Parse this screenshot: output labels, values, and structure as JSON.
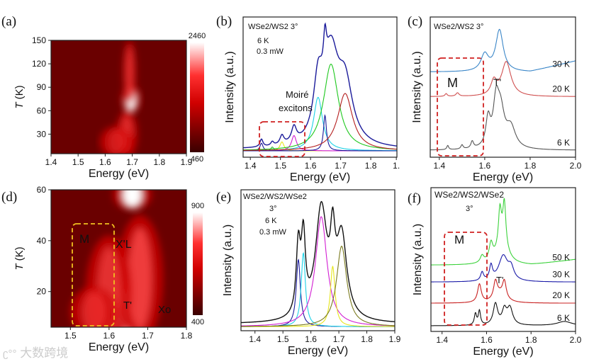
{
  "watermark": "大数跨境",
  "chart_data": [
    {
      "id": "a",
      "panel_label": "(a)",
      "type": "heatmap",
      "xlabel": "Energy (eV)",
      "ylabel": "T (K)",
      "xlim": [
        1.4,
        1.9
      ],
      "ylim": [
        5,
        150
      ],
      "xticks": [
        "1.4",
        "1.5",
        "1.6",
        "1.7",
        "1.8",
        "1.9"
      ],
      "yticks": [
        "30",
        "60",
        "90",
        "120",
        "150"
      ],
      "colorbar": {
        "max": "2460",
        "min": "460"
      },
      "hotspots": [
        {
          "energy": 1.695,
          "temperature": 75,
          "de": 0.018,
          "dt": 18,
          "intensity": 1.0
        },
        {
          "energy": 1.69,
          "temperature": 110,
          "de": 0.012,
          "dt": 40,
          "intensity": 0.6
        },
        {
          "energy": 1.68,
          "temperature": 30,
          "de": 0.02,
          "dt": 30,
          "intensity": 0.55
        },
        {
          "energy": 1.64,
          "temperature": 20,
          "de": 0.03,
          "dt": 20,
          "intensity": 0.35
        }
      ]
    },
    {
      "id": "b",
      "panel_label": "(b)",
      "type": "line",
      "xlabel": "Energy (eV)",
      "ylabel": "Intensity (a.u.)",
      "xlim": [
        1.376,
        1.887
      ],
      "ylim": [
        -0.05,
        1.05
      ],
      "xticks": [
        "1.4",
        "1.5",
        "1.6",
        "1.7",
        "1.8",
        "1."
      ],
      "annotations": [
        "WSe2/WS2 3°",
        "6   K",
        "0.3 mW",
        "Moiré",
        "excitons"
      ],
      "series": [
        {
          "name": "fit 1.437",
          "color": "#1a1a9a",
          "peaks": [
            [
              1.437,
              0.006,
              0.06
            ]
          ]
        },
        {
          "name": "fit 1.473",
          "color": "#3cb43c",
          "peaks": [
            [
              1.473,
              0.006,
              0.03
            ]
          ]
        },
        {
          "name": "fit 1.505",
          "color": "#e6e61e",
          "peaks": [
            [
              1.505,
              0.008,
              0.07
            ]
          ]
        },
        {
          "name": "fit 1.545",
          "color": "#d21ed2",
          "peaks": [
            [
              1.545,
              0.01,
              0.12
            ]
          ]
        },
        {
          "name": "fit 1.625",
          "color": "#1ed2e6",
          "peaks": [
            [
              1.625,
              0.018,
              0.42
            ]
          ]
        },
        {
          "name": "fit 1.648",
          "color": "#1a1a9a",
          "peaks": [
            [
              1.648,
              0.006,
              0.28
            ]
          ]
        },
        {
          "name": "fit 1.668",
          "color": "#1ec81e",
          "peaks": [
            [
              1.668,
              0.03,
              0.68
            ]
          ]
        },
        {
          "name": "fit 1.715",
          "color": "#b41e1e",
          "peaks": [
            [
              1.715,
              0.03,
              0.45
            ]
          ]
        },
        {
          "name": "measured",
          "color": "#1a1a9a",
          "sum": true,
          "baseline": 0.01
        }
      ]
    },
    {
      "id": "c",
      "panel_label": "(c)",
      "type": "line",
      "xlabel": "Energy (eV)",
      "ylabel": "Intensity (a.u.)",
      "xlim": [
        1.36,
        2.0
      ],
      "ylim": [
        -0.02,
        1.0
      ],
      "xticks": [
        "1.4",
        "1.6",
        "1.8",
        "2.0"
      ],
      "annotations": [
        "WSe2/WS2 3°",
        "M",
        "T'"
      ],
      "series": [
        {
          "name": "6 K",
          "color": "#555555",
          "offset": 0.03,
          "peaks": [
            [
              1.437,
              0.005,
              0.03
            ],
            [
              1.5,
              0.006,
              0.03
            ],
            [
              1.545,
              0.007,
              0.05
            ],
            [
              1.615,
              0.012,
              0.2
            ],
            [
              1.65,
              0.015,
              0.3
            ],
            [
              1.67,
              0.02,
              0.25
            ],
            [
              1.715,
              0.025,
              0.15
            ]
          ]
        },
        {
          "name": "20 K",
          "color": "#d05050",
          "offset": 0.42,
          "peaks": [
            [
              1.43,
              0.006,
              0.02
            ],
            [
              1.48,
              0.008,
              0.025
            ],
            [
              1.64,
              0.015,
              0.1
            ],
            [
              1.695,
              0.025,
              0.25
            ]
          ]
        },
        {
          "name": "30 K",
          "color": "#3a86c8",
          "offset": 0.6,
          "tilt": 0.08,
          "peaks": [
            [
              1.6,
              0.02,
              0.12
            ],
            [
              1.665,
              0.02,
              0.3
            ]
          ]
        }
      ]
    },
    {
      "id": "d",
      "panel_label": "(d)",
      "type": "heatmap",
      "xlabel": "Energy (eV)",
      "ylabel": "T (K)",
      "xlim": [
        1.45,
        1.8
      ],
      "ylim": [
        6,
        60
      ],
      "xticks": [
        "1.5",
        "1.6",
        "1.7",
        "1.8"
      ],
      "yticks": [
        "20",
        "40",
        "60"
      ],
      "colorbar": {
        "max": "900",
        "min": "400"
      },
      "annotations": [
        "M",
        "X'L",
        "T'",
        "Xo"
      ],
      "hotspots": [
        {
          "energy": 1.64,
          "temperature": 10,
          "de": 0.012,
          "dt": 14,
          "intensity": 1.0
        },
        {
          "energy": 1.66,
          "temperature": 58,
          "de": 0.025,
          "dt": 6,
          "intensity": 1.0
        },
        {
          "energy": 1.68,
          "temperature": 25,
          "de": 0.03,
          "dt": 25,
          "intensity": 0.75
        },
        {
          "energy": 1.6,
          "temperature": 20,
          "de": 0.03,
          "dt": 22,
          "intensity": 0.6
        },
        {
          "energy": 1.56,
          "temperature": 12,
          "de": 0.03,
          "dt": 10,
          "intensity": 0.5
        }
      ]
    },
    {
      "id": "e",
      "panel_label": "(e)",
      "type": "line",
      "xlabel": "Energy (eV)",
      "ylabel": "Intensity (a.u.)",
      "xlim": [
        1.35,
        1.9
      ],
      "ylim": [
        -0.03,
        1.02
      ],
      "xticks": [
        "1.4",
        "1.5",
        "1.6",
        "1.7",
        "1.8",
        "1.9"
      ],
      "annotations": [
        "WSe2/WS2/WSe2",
        "3°",
        "6 K",
        "0.3 mW"
      ],
      "series": [
        {
          "name": "fit 1.555",
          "color": "#1a1a9a",
          "peaks": [
            [
              1.555,
              0.009,
              0.5
            ]
          ]
        },
        {
          "name": "fit 1.573",
          "color": "#1ed2e6",
          "peaks": [
            [
              1.573,
              0.009,
              0.55
            ]
          ]
        },
        {
          "name": "fit 1.637",
          "color": "#d21ed2",
          "peaks": [
            [
              1.637,
              0.025,
              0.82
            ]
          ]
        },
        {
          "name": "fit 1.678",
          "color": "#e6e61e",
          "peaks": [
            [
              1.678,
              0.01,
              0.45
            ]
          ]
        },
        {
          "name": "fit 1.71",
          "color": "#7a7a1e",
          "peaks": [
            [
              1.71,
              0.022,
              0.6
            ]
          ]
        },
        {
          "name": "measured",
          "color": "#111111",
          "sum": true,
          "baseline": 0.02
        }
      ]
    },
    {
      "id": "f",
      "panel_label": "(f)",
      "type": "line",
      "xlabel": "Energy (eV)",
      "ylabel": "Intensity (a.u.)",
      "xlim": [
        1.35,
        2.0
      ],
      "ylim": [
        -0.02,
        1.0
      ],
      "xticks": [
        "1.4",
        "1.6",
        "1.8",
        "2.0"
      ],
      "annotations": [
        "WSe2/WS2/WSe2",
        "3°",
        "M",
        "T'"
      ],
      "series": [
        {
          "name": "6  K",
          "color": "#111111",
          "offset": 0.02,
          "peaks": [
            [
              1.55,
              0.006,
              0.08
            ],
            [
              1.568,
              0.006,
              0.1
            ],
            [
              1.64,
              0.012,
              0.15
            ],
            [
              1.68,
              0.012,
              0.1
            ],
            [
              1.705,
              0.015,
              0.12
            ],
            [
              1.95,
              0.04,
              0.03
            ]
          ]
        },
        {
          "name": "20 K",
          "color": "#c82020",
          "offset": 0.18,
          "peaks": [
            [
              1.568,
              0.01,
              0.13
            ],
            [
              1.64,
              0.01,
              0.12
            ],
            [
              1.68,
              0.01,
              0.12
            ],
            [
              1.66,
              0.03,
              0.06
            ]
          ]
        },
        {
          "name": "30 K",
          "color": "#1a1aa8",
          "offset": 0.33,
          "peaks": [
            [
              1.58,
              0.008,
              0.06
            ],
            [
              1.62,
              0.008,
              0.1
            ],
            [
              1.675,
              0.025,
              0.18
            ],
            [
              1.71,
              0.015,
              0.08
            ]
          ]
        },
        {
          "name": "50 K",
          "color": "#3cd23c",
          "offset": 0.45,
          "tilt": 0.04,
          "peaks": [
            [
              1.58,
              0.01,
              0.05
            ],
            [
              1.62,
              0.01,
              0.12
            ],
            [
              1.66,
              0.008,
              0.25
            ],
            [
              1.68,
              0.008,
              0.3
            ],
            [
              1.67,
              0.03,
              0.15
            ]
          ]
        }
      ]
    }
  ]
}
